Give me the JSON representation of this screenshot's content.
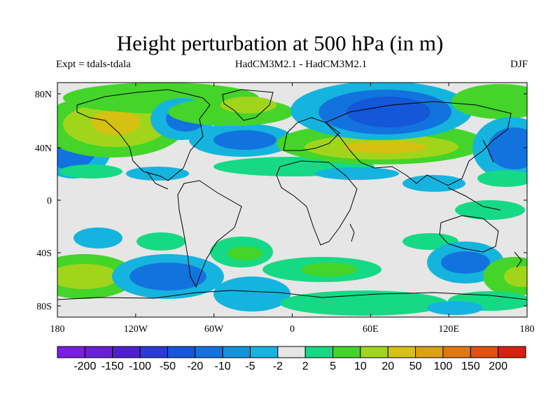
{
  "header": {
    "title": "Height perturbation at 500 hPa (in m)",
    "expt": "Expt = tdals-tdala",
    "models": "HadCM3M2.1 - HadCM3M2.1",
    "season": "DJF"
  },
  "map": {
    "lat_ticks": [
      "80N",
      "40N",
      "0",
      "40S",
      "80S"
    ],
    "lon_ticks": [
      "180",
      "120W",
      "60W",
      "0",
      "60E",
      "120E",
      "180"
    ],
    "land_color": "#000000",
    "background_color": "#e6e6e6"
  },
  "colorbar": {
    "labels": [
      "-200",
      "-150",
      "-100",
      "-50",
      "-20",
      "-10",
      "-5",
      "-2",
      "2",
      "5",
      "10",
      "20",
      "50",
      "100",
      "150",
      "200"
    ],
    "colors": [
      "#7a1fe0",
      "#6a1fd6",
      "#4f20d0",
      "#2a3bd6",
      "#1457d8",
      "#1373de",
      "#1592dc",
      "#15b4de",
      "#e6e6e6",
      "#16d985",
      "#44d42a",
      "#a0d51c",
      "#d6c012",
      "#dca015",
      "#e07812",
      "#e0500f",
      "#d82010"
    ]
  }
}
